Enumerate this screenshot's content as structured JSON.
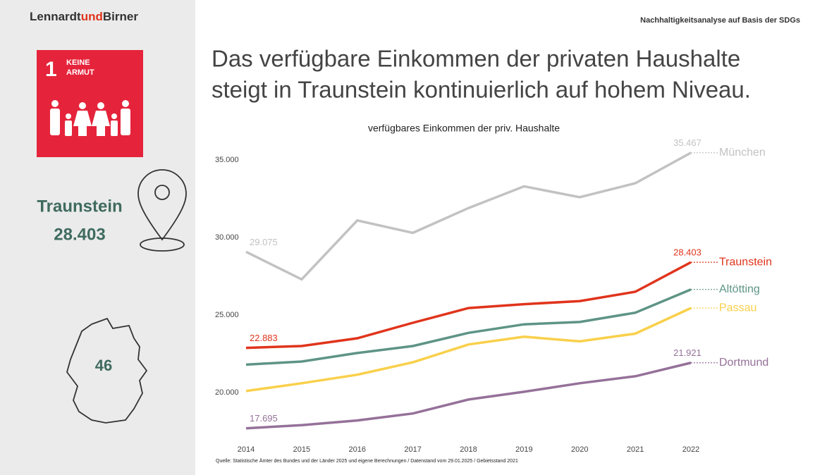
{
  "header": {
    "brand": [
      "Lennardt",
      "und",
      "Birner"
    ],
    "report": "Nachhaltigkeitsanalyse auf Basis der SDGs",
    "headline": [
      "Das verfügbare Einkommen der privaten Haushalte",
      "steigt in Traunstein kontinuierlich auf hohem Niveau."
    ]
  },
  "sidebar": {
    "sdg_number": "1",
    "sdg_label": [
      "KEINE",
      "ARMUT"
    ],
    "region": "Traunstein",
    "region_value": "28.403",
    "rank": "46"
  },
  "chart_data": {
    "type": "line",
    "title": "verfügbares Einkommen der priv. Haushalte",
    "categories": [
      "2014",
      "2015",
      "2016",
      "2017",
      "2018",
      "2019",
      "2020",
      "2021",
      "2022"
    ],
    "ylim": [
      17000,
      36000
    ],
    "yticks": [
      {
        "value": 20000,
        "label": "20.000"
      },
      {
        "value": 25000,
        "label": "25.000"
      },
      {
        "value": 30000,
        "label": "30.000"
      },
      {
        "value": 35000,
        "label": "35.000"
      }
    ],
    "grid": false,
    "series": [
      {
        "name": "München",
        "color": "#c2c2c2",
        "values": [
          29075,
          27300,
          31100,
          30300,
          31900,
          33300,
          32600,
          33500,
          35467
        ],
        "value_labels": [
          "29.075",
          null,
          null,
          null,
          null,
          null,
          null,
          null,
          "35.467"
        ]
      },
      {
        "name": "Traunstein",
        "color": "#e0341c",
        "values": [
          22883,
          23000,
          23500,
          24500,
          25450,
          25700,
          25900,
          26500,
          28403
        ],
        "value_labels": [
          "22.883",
          null,
          null,
          null,
          null,
          null,
          null,
          null,
          "28.403"
        ]
      },
      {
        "name": "Altötting",
        "color": "#5e9485",
        "values": [
          21800,
          22000,
          22550,
          23000,
          23850,
          24400,
          24550,
          25150,
          26650
        ]
      },
      {
        "name": "Passau",
        "color": "#f9d04b",
        "values": [
          20100,
          20600,
          21150,
          21950,
          23100,
          23600,
          23300,
          23800,
          25450
        ]
      },
      {
        "name": "Dortmund",
        "color": "#957199",
        "values": [
          17695,
          17900,
          18200,
          18650,
          19550,
          20050,
          20600,
          21050,
          21921
        ],
        "value_labels": [
          "17.695",
          null,
          null,
          null,
          null,
          null,
          null,
          null,
          "21.921"
        ]
      }
    ],
    "source": "Quelle: Statistische Ämter des Bundes und der Länder 2025 und eigene Berechnungen / Datenstand vom 29.01.2025 / Gebietsstand 2021"
  }
}
